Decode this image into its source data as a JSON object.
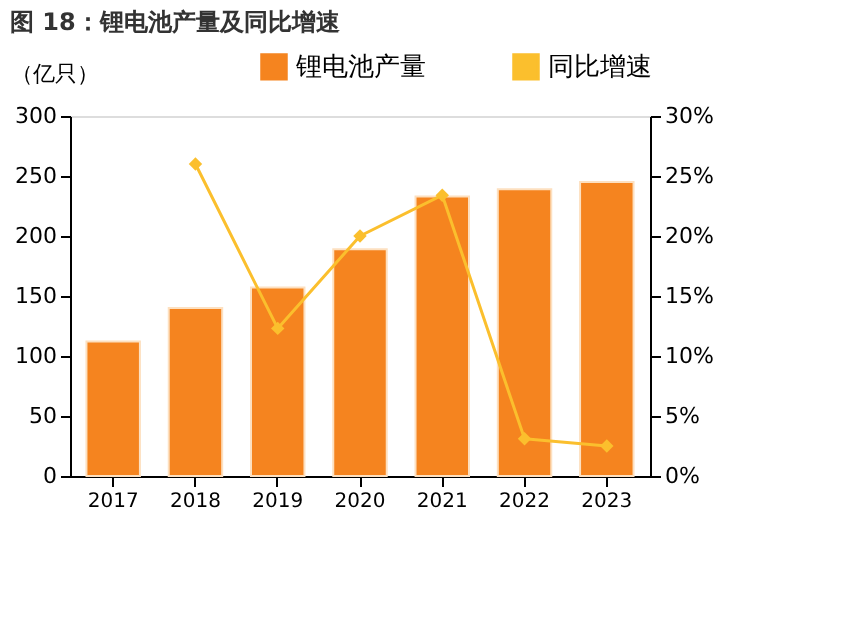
{
  "chart_data": {
    "type": "bar",
    "title": "图 18：锂电池产量及同比增速",
    "ylabel": "（亿只）",
    "categories": [
      "2017",
      "2018",
      "2019",
      "2020",
      "2021",
      "2022",
      "2023"
    ],
    "series": [
      {
        "name": "锂电池产量",
        "color": "#f5841f",
        "values": [
          112,
          140,
          157,
          189,
          233,
          239,
          245
        ]
      },
      {
        "name": "同比增速",
        "type": "line",
        "axis": "y2",
        "color": "#fbbf2d",
        "values": [
          null,
          26,
          12.3,
          20,
          23.4,
          3.1,
          2.5
        ]
      }
    ],
    "ylim": [
      0,
      300
    ],
    "yticks": [
      0,
      50,
      100,
      150,
      200,
      250,
      300
    ],
    "y2lim": [
      0,
      30
    ],
    "y2ticks": [
      {
        "value": 0,
        "label": "0%"
      },
      {
        "value": 5,
        "label": "5%"
      },
      {
        "value": 10,
        "label": "10%"
      },
      {
        "value": 15,
        "label": "15%"
      },
      {
        "value": 20,
        "label": "20%"
      },
      {
        "value": 25,
        "label": "25%"
      },
      {
        "value": 30,
        "label": "30%"
      }
    ],
    "legend": "top",
    "marker": "diamond",
    "grid": false
  }
}
